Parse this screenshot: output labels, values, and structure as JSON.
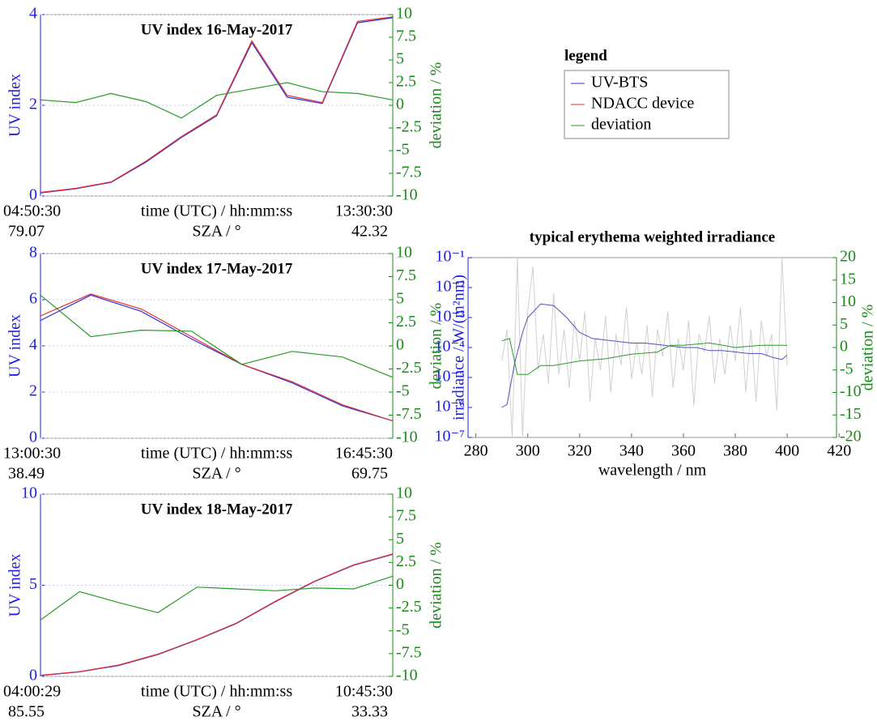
{
  "legend_title": "legend",
  "chart_data": [
    {
      "type": "line",
      "title": "UV index 16-May-2017",
      "categories": [
        "04:50:30",
        null,
        null,
        null,
        null,
        null,
        null,
        null,
        null,
        null,
        "13:30:30"
      ],
      "xlabel": "time (UTC) / hh:mm:ss",
      "x2label": "SZA / °",
      "x2_labels": [
        "79.07",
        "42.32"
      ],
      "ylabel": "UV index",
      "y2label": "deviation / %",
      "ylim": [
        0,
        4
      ],
      "yticks": [
        0,
        2,
        4
      ],
      "y2lim": [
        -10,
        10
      ],
      "y2ticks": [
        -10,
        -7.5,
        -5,
        -2.5,
        0,
        2.5,
        5,
        7.5,
        10
      ],
      "grid": true,
      "series": [
        {
          "name": "UV-BTS",
          "color": "#3030e0",
          "values": [
            0.07,
            0.16,
            0.3,
            0.75,
            1.29,
            1.77,
            3.38,
            2.18,
            2.04,
            3.82,
            3.93
          ]
        },
        {
          "name": "NDACC device",
          "color": "#e03030",
          "values": [
            0.08,
            0.17,
            0.31,
            0.77,
            1.31,
            1.79,
            3.42,
            2.22,
            2.06,
            3.85,
            3.95
          ]
        },
        {
          "name": "deviation",
          "color": "#2a9a2a",
          "axis": "y2",
          "values": [
            0.6,
            0.3,
            1.3,
            0.4,
            -1.4,
            1.1,
            1.8,
            2.5,
            1.5,
            1.3,
            0.6
          ]
        }
      ]
    },
    {
      "type": "line",
      "title": "UV index 17-May-2017",
      "categories": [
        "13:00:30",
        null,
        null,
        null,
        null,
        null,
        null,
        "16:45:30"
      ],
      "xlabel": "time (UTC) / hh:mm:ss",
      "x2label": "SZA / °",
      "x2_labels": [
        "38.49",
        "69.75"
      ],
      "ylabel": "UV index",
      "y2label": "deviation / %",
      "ylim": [
        0,
        8
      ],
      "yticks": [
        0,
        2,
        4,
        6,
        8
      ],
      "y2lim": [
        -10,
        10
      ],
      "y2ticks": [
        -10,
        -7.5,
        -5,
        -2.5,
        0,
        2.5,
        5,
        7.5,
        10
      ],
      "grid": true,
      "series": [
        {
          "name": "UV-BTS",
          "color": "#3030e0",
          "values": [
            5.1,
            6.2,
            5.5,
            4.3,
            3.2,
            2.4,
            1.4,
            0.75
          ]
        },
        {
          "name": "NDACC device",
          "color": "#e03030",
          "values": [
            5.3,
            6.25,
            5.6,
            4.4,
            3.2,
            2.45,
            1.45,
            0.75
          ]
        },
        {
          "name": "deviation",
          "color": "#2a9a2a",
          "axis": "y2",
          "values": [
            5.5,
            1.0,
            1.7,
            1.6,
            -2,
            -0.6,
            -1.2,
            -3.4
          ]
        }
      ]
    },
    {
      "type": "line",
      "title": "UV index 18-May-2017",
      "categories": [
        "04:00:29",
        null,
        null,
        null,
        null,
        null,
        null,
        null,
        null,
        "10:45:30"
      ],
      "xlabel": "time (UTC) / hh:mm:ss",
      "x2label": "SZA / °",
      "x2_labels": [
        "85.55",
        "33.33"
      ],
      "ylabel": "UV index",
      "y2label": "deviation / %",
      "ylim": [
        0,
        10
      ],
      "yticks": [
        0,
        5,
        10
      ],
      "y2lim": [
        -10,
        10
      ],
      "y2ticks": [
        -10,
        -7.5,
        -5,
        -2.5,
        0,
        2.5,
        5,
        7.5,
        10
      ],
      "grid": true,
      "series": [
        {
          "name": "UV-BTS",
          "color": "#3030e0",
          "values": [
            0.05,
            0.25,
            0.6,
            1.2,
            2.0,
            2.9,
            4.1,
            5.2,
            6.1,
            6.7
          ]
        },
        {
          "name": "NDACC device",
          "color": "#e03030",
          "values": [
            0.06,
            0.26,
            0.62,
            1.22,
            2.02,
            2.92,
            4.12,
            5.22,
            6.12,
            6.72
          ]
        },
        {
          "name": "deviation",
          "color": "#2a9a2a",
          "axis": "y2",
          "values": [
            -3.8,
            -0.7,
            -1.9,
            -3.0,
            -0.2,
            -0.4,
            -0.6,
            -0.3,
            -0.4,
            1.0
          ]
        }
      ]
    },
    {
      "type": "logline",
      "title": "typical erythema weighted irradiance",
      "xlabel": "wavelength / nm",
      "ylabel": "irradiance / W/(m²nm)",
      "y2label": "deviation / %",
      "xlim": [
        277,
        419
      ],
      "xticks": [
        280,
        300,
        320,
        340,
        360,
        380,
        400,
        420
      ],
      "log_y": true,
      "ylim": [
        1e-07,
        0.1
      ],
      "yticks": [
        {
          "value": 1e-07,
          "label": "10⁻⁷"
        },
        {
          "value": 1e-06,
          "label": "10⁻⁶"
        },
        {
          "value": 1e-05,
          "label": "10⁻⁵"
        },
        {
          "value": 0.0001,
          "label": "10⁻⁴"
        },
        {
          "value": 0.001,
          "label": "10⁻³"
        },
        {
          "value": 0.01,
          "label": "10⁻²"
        },
        {
          "value": 0.1,
          "label": "10⁻¹"
        }
      ],
      "y2lim": [
        -20,
        20
      ],
      "y2ticks": [
        -20,
        -15,
        -10,
        -5,
        0,
        5,
        10,
        15,
        20
      ],
      "series": [
        {
          "color": "#d0d0d0",
          "axis": "y2",
          "x": [
            290,
            292,
            294,
            296,
            298,
            300,
            302,
            304,
            306,
            308,
            310,
            312,
            314,
            316,
            318,
            320,
            322,
            324,
            326,
            328,
            330,
            332,
            334,
            336,
            338,
            340,
            342,
            344,
            346,
            348,
            350,
            352,
            354,
            356,
            358,
            360,
            362,
            364,
            366,
            368,
            370,
            372,
            374,
            376,
            378,
            380,
            382,
            384,
            386,
            388,
            390,
            392,
            394,
            396,
            398,
            400
          ],
          "values": [
            -3,
            4,
            -20,
            20,
            -20,
            8,
            18,
            -5,
            3,
            -8,
            12,
            -6,
            4,
            -9,
            6,
            -3,
            8,
            -12,
            2,
            -5,
            7,
            -10,
            3,
            -4,
            9,
            -7,
            1,
            -6,
            5,
            -11,
            4,
            -2,
            8,
            -9,
            2,
            -5,
            6,
            -13,
            3,
            -1,
            7,
            -8,
            2,
            -6,
            5,
            -3,
            9,
            -10,
            4,
            -12,
            6,
            -2,
            3,
            -14,
            20,
            -4
          ]
        },
        {
          "name": "UV-BTS",
          "color": "#5050c0",
          "x": [
            290,
            292,
            295,
            298,
            300,
            305,
            310,
            315,
            320,
            325,
            330,
            335,
            340,
            345,
            350,
            355,
            360,
            365,
            370,
            375,
            380,
            385,
            390,
            395,
            398,
            400
          ],
          "values": [
            1e-06,
            1.26e-06,
            3.16e-05,
            0.000316,
            0.001,
            0.00282,
            0.00251,
            0.001,
            0.000316,
            0.0002,
            0.000178,
            0.000158,
            0.000141,
            0.000141,
            0.000126,
            0.000112,
            0.0001,
            0.0001,
            7.9e-05,
            7.9e-05,
            7.1e-05,
            6.3e-05,
            6.3e-05,
            4.5e-05,
            4e-05,
            5.6e-05
          ]
        },
        {
          "name": "deviation",
          "color": "#2a9a2a",
          "axis": "y2",
          "x": [
            290,
            293,
            296,
            300,
            305,
            310,
            320,
            330,
            340,
            350,
            355,
            360,
            370,
            380,
            390,
            400
          ],
          "values": [
            1.5,
            2,
            -6,
            -6,
            -4,
            -4,
            -3,
            -2.5,
            -1.5,
            -1,
            0.5,
            0.5,
            1,
            0,
            0.5,
            0.5
          ]
        }
      ]
    }
  ]
}
